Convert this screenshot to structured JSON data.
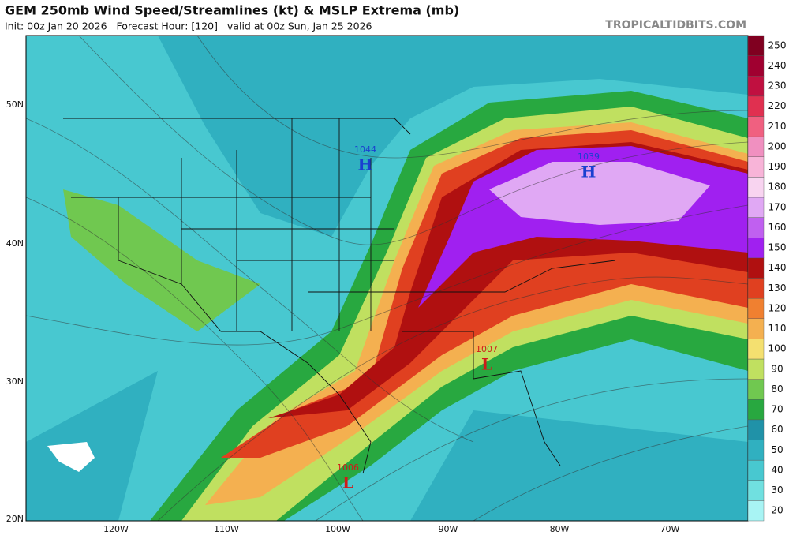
{
  "header": {
    "title": "GEM 250mb Wind Speed/Streamlines (kt) & MSLP Extrema (mb)",
    "subtitle": "Init: 00z Jan 20 2026   Forecast Hour: [120]   valid at 00z Sun, Jan 25 2026",
    "site": "TROPICALTIDBITS.COM"
  },
  "map": {
    "lat_labels": [
      "50N",
      "40N",
      "30N",
      "20N"
    ],
    "lon_labels": [
      "120W",
      "110W",
      "100W",
      "90W",
      "80W",
      "70W"
    ],
    "extrema": [
      {
        "letter": "H",
        "value": "1044",
        "color": "#1a3fd0"
      },
      {
        "letter": "H",
        "value": "1039",
        "color": "#1a3fd0"
      },
      {
        "letter": "L",
        "value": "1007",
        "color": "#d01a1a"
      },
      {
        "letter": "L",
        "value": "1006",
        "color": "#d01a1a"
      }
    ]
  },
  "colorbar": {
    "ticks": [
      20,
      30,
      40,
      50,
      60,
      70,
      80,
      90,
      100,
      110,
      120,
      130,
      140,
      150,
      160,
      170,
      180,
      190,
      200,
      210,
      220,
      230,
      240,
      250
    ],
    "colors": [
      "#a8f4f4",
      "#70e0e0",
      "#48c8d0",
      "#30b0c0",
      "#2092a8",
      "#28a840",
      "#70c850",
      "#c0e060",
      "#f4e070",
      "#f4b050",
      "#f08030",
      "#e04020",
      "#b01010",
      "#a020f0",
      "#c060f0",
      "#e0a8f4",
      "#f8d4f0",
      "#f8b4d8",
      "#f090c0",
      "#f06080",
      "#e03050",
      "#c01040",
      "#a00030",
      "#800020"
    ]
  }
}
